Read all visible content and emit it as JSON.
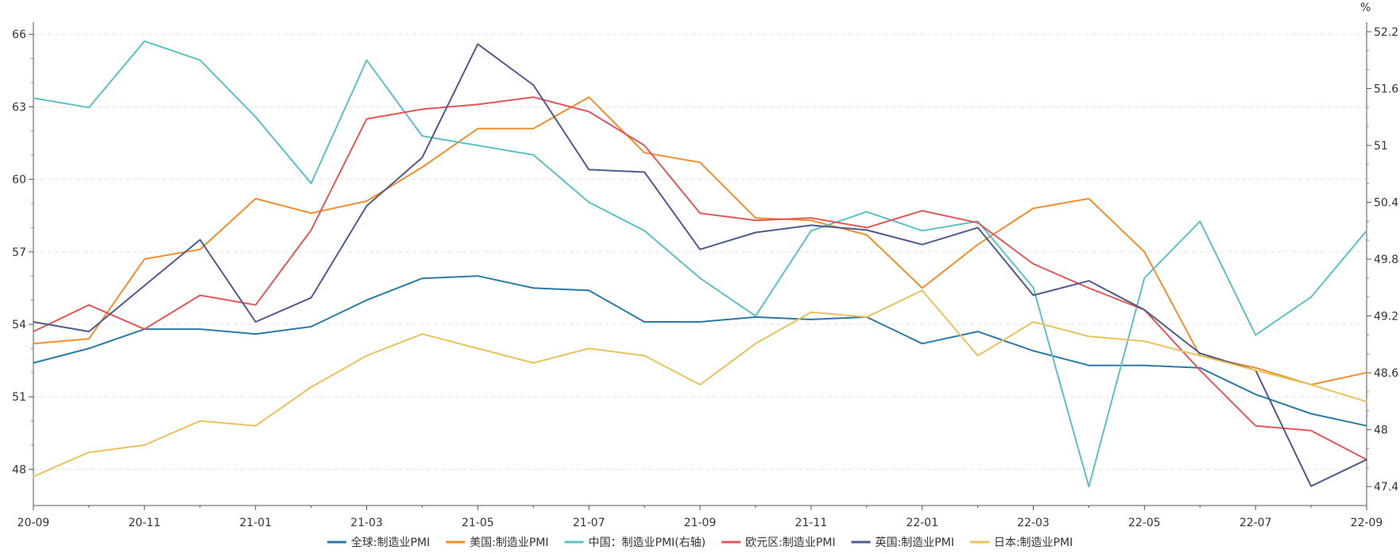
{
  "chart_data": {
    "type": "line",
    "x": [
      "20-09",
      "20-10",
      "20-11",
      "20-12",
      "21-01",
      "21-02",
      "21-03",
      "21-04",
      "21-05",
      "21-06",
      "21-07",
      "21-08",
      "21-09",
      "21-10",
      "21-11",
      "21-12",
      "22-01",
      "22-02",
      "22-03",
      "22-04",
      "22-05",
      "22-06",
      "22-07",
      "22-08",
      "22-09"
    ],
    "x_tick_labels": [
      "20-09",
      "20-11",
      "21-01",
      "21-03",
      "21-05",
      "21-07",
      "21-09",
      "21-11",
      "22-01",
      "22-03",
      "22-05",
      "22-07",
      "22-09"
    ],
    "y_left": {
      "min": 46.5,
      "max": 66.5,
      "ticks": [
        48,
        51,
        54,
        57,
        60,
        63,
        66
      ]
    },
    "y_right": {
      "min": 47.2,
      "max": 52.3,
      "ticks": [
        "47.4",
        "48",
        "48.6",
        "49.2",
        "49.8",
        "50.4",
        "51",
        "51.6",
        "52.2"
      ],
      "unit": "%"
    },
    "grid": true,
    "legend_position": "bottom",
    "series": [
      {
        "name": "全球:制造业PMI",
        "color": "#2a7aa6",
        "axis": "left",
        "values": [
          52.4,
          53.0,
          53.8,
          53.8,
          53.6,
          53.9,
          55.0,
          55.9,
          56.0,
          55.5,
          55.4,
          54.1,
          54.1,
          54.3,
          54.2,
          54.3,
          53.2,
          53.7,
          52.9,
          52.3,
          52.3,
          52.2,
          51.1,
          50.3,
          49.8
        ]
      },
      {
        "name": "美国:制造业PMI",
        "color": "#f28e2b",
        "axis": "left",
        "values": [
          53.2,
          53.4,
          56.7,
          57.1,
          59.2,
          58.6,
          59.1,
          60.5,
          62.1,
          62.1,
          63.4,
          61.1,
          60.7,
          58.4,
          58.3,
          57.7,
          55.5,
          57.3,
          58.8,
          59.2,
          57.0,
          52.7,
          52.2,
          51.5,
          52.0
        ]
      },
      {
        "name": "中国：制造业PMI(右轴)",
        "color": "#5bc1c4",
        "axis": "right",
        "values": [
          51.5,
          51.4,
          52.1,
          51.9,
          51.3,
          50.6,
          51.9,
          51.1,
          51.0,
          50.9,
          50.4,
          50.1,
          49.6,
          49.2,
          50.1,
          50.3,
          50.1,
          50.2,
          49.5,
          47.4,
          49.6,
          50.2,
          49.0,
          49.4,
          50.1
        ]
      },
      {
        "name": "欧元区:制造业PMI",
        "color": "#e15759",
        "axis": "left",
        "values": [
          53.7,
          54.8,
          53.8,
          55.2,
          54.8,
          57.9,
          62.5,
          62.9,
          63.1,
          63.4,
          62.8,
          61.4,
          58.6,
          58.3,
          58.4,
          58.0,
          58.7,
          58.2,
          56.5,
          55.5,
          54.6,
          52.1,
          49.8,
          49.6,
          48.4
        ]
      },
      {
        "name": "英国:制造业PMI",
        "color": "#4e5a8c",
        "axis": "left",
        "values": [
          54.1,
          53.7,
          55.6,
          57.5,
          54.1,
          55.1,
          58.9,
          60.9,
          65.6,
          63.9,
          60.4,
          60.3,
          57.1,
          57.8,
          58.1,
          57.9,
          57.3,
          58.0,
          55.2,
          55.8,
          54.6,
          52.8,
          52.1,
          47.3,
          48.4
        ]
      },
      {
        "name": "日本:制造业PMI",
        "color": "#e8c35c",
        "axis": "left",
        "values": [
          47.7,
          48.7,
          49.0,
          50.0,
          49.8,
          51.4,
          52.7,
          53.6,
          53.0,
          52.4,
          53.0,
          52.7,
          51.5,
          53.2,
          54.5,
          54.3,
          55.4,
          52.7,
          54.1,
          53.5,
          53.3,
          52.7,
          52.1,
          51.5,
          50.8
        ]
      }
    ]
  }
}
